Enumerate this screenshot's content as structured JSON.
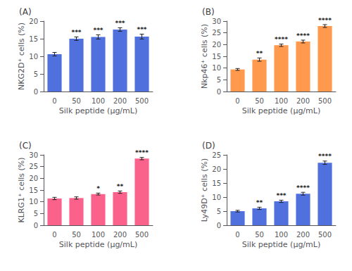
{
  "chart_data": [
    {
      "type": "bar",
      "title": "(A)",
      "xlabel": "Silk peptide (μg/mL)",
      "ylabel": "NKG2D⁺ cells (%)",
      "categories": [
        "0",
        "50",
        "100",
        "200",
        "500"
      ],
      "values": [
        10.6,
        15.0,
        15.5,
        17.6,
        15.6
      ],
      "errors": [
        0.5,
        0.5,
        0.6,
        0.5,
        0.7
      ],
      "annotations": [
        {
          "x": "50",
          "text": "***"
        },
        {
          "x": "100",
          "text": "***"
        },
        {
          "x": "200",
          "text": "***"
        },
        {
          "x": "500",
          "text": "***"
        }
      ],
      "ylim": [
        0,
        20
      ],
      "yticks": [
        0,
        5,
        10,
        15,
        20
      ],
      "grid": false
    },
    {
      "type": "bar",
      "title": "(B)",
      "xlabel": "Silk peptide (μg/mL)",
      "ylabel": "Nkp46⁺ cells (%)",
      "categories": [
        "0",
        "50",
        "100",
        "200",
        "500"
      ],
      "values": [
        9.4,
        13.6,
        19.7,
        21.3,
        27.9
      ],
      "errors": [
        0.4,
        0.7,
        0.5,
        0.6,
        0.6
      ],
      "annotations": [
        {
          "x": "50",
          "text": "**"
        },
        {
          "x": "100",
          "text": "****"
        },
        {
          "x": "200",
          "text": "****"
        },
        {
          "x": "500",
          "text": "****"
        }
      ],
      "ylim": [
        0,
        30
      ],
      "yticks": [
        0,
        5,
        10,
        15,
        20,
        25,
        30
      ],
      "grid": false
    },
    {
      "type": "bar",
      "title": "(C)",
      "xlabel": "Silk peptide (μg/mL)",
      "ylabel": "KLRG1⁺ cells (%)",
      "categories": [
        "0",
        "50",
        "100",
        "200",
        "500"
      ],
      "values": [
        11.4,
        11.6,
        13.3,
        14.1,
        28.4
      ],
      "errors": [
        0.5,
        0.5,
        0.4,
        0.5,
        0.5
      ],
      "annotations": [
        {
          "x": "100",
          "text": "*"
        },
        {
          "x": "200",
          "text": "**"
        },
        {
          "x": "500",
          "text": "****"
        }
      ],
      "ylim": [
        0,
        30
      ],
      "yticks": [
        0,
        5,
        10,
        15,
        20,
        25,
        30
      ],
      "grid": false
    },
    {
      "type": "bar",
      "title": "(D)",
      "xlabel": "Silk peptide (μg/mL)",
      "ylabel": "Ly49D⁺ cells (%)",
      "categories": [
        "0",
        "50",
        "100",
        "200",
        "500"
      ],
      "values": [
        5.0,
        6.0,
        8.5,
        11.2,
        22.2
      ],
      "errors": [
        0.3,
        0.4,
        0.4,
        0.5,
        0.6
      ],
      "annotations": [
        {
          "x": "50",
          "text": "**"
        },
        {
          "x": "100",
          "text": "***"
        },
        {
          "x": "200",
          "text": "****"
        },
        {
          "x": "500",
          "text": "****"
        }
      ],
      "ylim": [
        0,
        25
      ],
      "yticks": [
        0,
        5,
        10,
        15,
        20,
        25
      ],
      "grid": false
    }
  ]
}
